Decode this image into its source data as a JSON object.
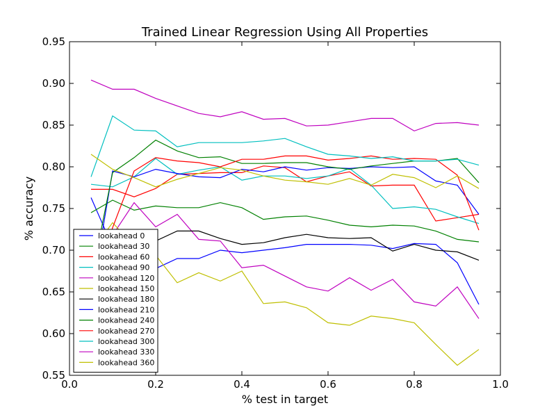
{
  "chart_data": {
    "type": "line",
    "title": "Trained Linear Regression Using All Properties",
    "xlabel": "% test in target",
    "ylabel": "% accuracy",
    "xlim": [
      0.0,
      1.0
    ],
    "ylim": [
      0.55,
      0.95
    ],
    "xticks": [
      "0.0",
      "0.2",
      "0.4",
      "0.6",
      "0.8",
      "1.0"
    ],
    "yticks": [
      "0.55",
      "0.60",
      "0.65",
      "0.70",
      "0.75",
      "0.80",
      "0.85",
      "0.90",
      "0.95"
    ],
    "legend_position": "lower-left",
    "grid": false,
    "x": [
      0.05,
      0.1,
      0.15,
      0.2,
      0.25,
      0.3,
      0.35,
      0.4,
      0.45,
      0.5,
      0.55,
      0.6,
      0.65,
      0.7,
      0.75,
      0.8,
      0.85,
      0.9,
      0.95
    ],
    "series": [
      {
        "name": "lookahead 0",
        "color": "#0000ff",
        "values": [
          0.763,
          0.704,
          0.68,
          0.678,
          0.69,
          0.69,
          0.7,
          0.697,
          0.7,
          0.703,
          0.707,
          0.707,
          0.707,
          0.706,
          0.702,
          0.708,
          0.707,
          0.685,
          0.635
        ]
      },
      {
        "name": "lookahead 30",
        "color": "#008000",
        "values": [
          0.745,
          0.76,
          0.748,
          0.753,
          0.751,
          0.751,
          0.757,
          0.751,
          0.737,
          0.74,
          0.741,
          0.736,
          0.73,
          0.728,
          0.73,
          0.729,
          0.723,
          0.713,
          0.71
        ]
      },
      {
        "name": "lookahead 60",
        "color": "#ff0000",
        "values": [
          0.773,
          0.773,
          0.764,
          0.774,
          0.791,
          0.792,
          0.793,
          0.793,
          0.801,
          0.799,
          0.782,
          0.789,
          0.794,
          0.777,
          0.778,
          0.778,
          0.735,
          0.739,
          0.743
        ]
      },
      {
        "name": "lookahead 90",
        "color": "#00bfbf",
        "values": [
          0.779,
          0.776,
          0.788,
          0.81,
          0.791,
          0.796,
          0.8,
          0.784,
          0.789,
          0.789,
          0.786,
          0.789,
          0.798,
          0.778,
          0.75,
          0.752,
          0.749,
          0.74,
          0.732
        ]
      },
      {
        "name": "lookahead 120",
        "color": "#bf00bf",
        "values": [
          0.632,
          0.718,
          0.757,
          0.728,
          0.743,
          0.713,
          0.711,
          0.679,
          0.682,
          0.669,
          0.656,
          0.651,
          0.667,
          0.652,
          0.665,
          0.638,
          0.633,
          0.656,
          0.618
        ]
      },
      {
        "name": "lookahead 150",
        "color": "#bfbf00",
        "values": [
          0.698,
          0.733,
          0.705,
          0.694,
          0.661,
          0.673,
          0.663,
          0.675,
          0.636,
          0.638,
          0.631,
          0.613,
          0.61,
          0.621,
          0.618,
          0.613,
          0.587,
          0.562,
          0.581
        ]
      },
      {
        "name": "lookahead 180",
        "color": "#000000",
        "values": [
          0.646,
          0.709,
          0.711,
          0.711,
          0.723,
          0.723,
          0.714,
          0.707,
          0.709,
          0.715,
          0.719,
          0.715,
          0.714,
          0.715,
          0.699,
          0.707,
          0.7,
          0.698,
          0.688
        ]
      },
      {
        "name": "lookahead 210",
        "color": "#0000ff",
        "values": [
          0.642,
          0.795,
          0.788,
          0.797,
          0.792,
          0.788,
          0.787,
          0.797,
          0.794,
          0.8,
          0.796,
          0.799,
          0.798,
          0.8,
          0.799,
          0.8,
          0.783,
          0.778,
          0.743
        ]
      },
      {
        "name": "lookahead 240",
        "color": "#008000",
        "values": [
          0.664,
          0.793,
          0.811,
          0.832,
          0.819,
          0.811,
          0.812,
          0.804,
          0.804,
          0.805,
          0.805,
          0.8,
          0.797,
          0.801,
          0.804,
          0.807,
          0.807,
          0.81,
          0.781
        ]
      },
      {
        "name": "lookahead 270",
        "color": "#ff0000",
        "values": [
          0.65,
          0.727,
          0.795,
          0.811,
          0.807,
          0.805,
          0.8,
          0.809,
          0.809,
          0.813,
          0.813,
          0.808,
          0.81,
          0.813,
          0.809,
          0.81,
          0.809,
          0.79,
          0.724
        ]
      },
      {
        "name": "lookahead 300",
        "color": "#00bfbf",
        "values": [
          0.788,
          0.861,
          0.844,
          0.843,
          0.824,
          0.829,
          0.829,
          0.829,
          0.831,
          0.834,
          0.824,
          0.815,
          0.813,
          0.81,
          0.812,
          0.807,
          0.807,
          0.809,
          0.802
        ]
      },
      {
        "name": "lookahead 330",
        "color": "#bf00bf",
        "values": [
          0.904,
          0.893,
          0.893,
          0.882,
          0.873,
          0.864,
          0.86,
          0.866,
          0.857,
          0.858,
          0.849,
          0.85,
          0.854,
          0.858,
          0.858,
          0.843,
          0.852,
          0.853,
          0.85
        ]
      },
      {
        "name": "lookahead 360",
        "color": "#bfbf00",
        "values": [
          0.815,
          0.797,
          0.787,
          0.776,
          0.785,
          0.792,
          0.799,
          0.796,
          0.789,
          0.784,
          0.782,
          0.779,
          0.786,
          0.778,
          0.791,
          0.787,
          0.775,
          0.789,
          0.774
        ]
      }
    ]
  }
}
